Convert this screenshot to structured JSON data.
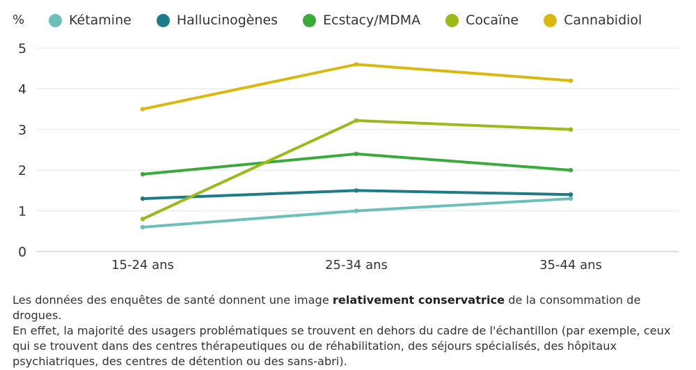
{
  "chart_data": {
    "type": "line",
    "unit_label": "%",
    "categories": [
      "15-24 ans",
      "25-34 ans",
      "35-44 ans"
    ],
    "ylim": [
      0,
      5
    ],
    "yticks": [
      0,
      1,
      2,
      3,
      4,
      5
    ],
    "grid": true,
    "legend_position": "top",
    "series": [
      {
        "name": "Kétamine",
        "color": "#6cc0b9",
        "values": [
          0.6,
          1.0,
          1.3
        ]
      },
      {
        "name": "Hallucinogènes",
        "color": "#1d7a87",
        "values": [
          1.3,
          1.5,
          1.4
        ]
      },
      {
        "name": "Ecstacy/MDMA",
        "color": "#3aaa3c",
        "values": [
          1.9,
          2.4,
          2.0
        ]
      },
      {
        "name": "Cocaïne",
        "color": "#9cb91a",
        "values": [
          0.8,
          3.22,
          3.0
        ]
      },
      {
        "name": "Cannabidiol",
        "color": "#dbb80f",
        "values": [
          3.5,
          4.6,
          4.2
        ]
      }
    ]
  },
  "note": {
    "line1_before": "Les données des enquêtes de santé donnent une image ",
    "line1_bold": "relativement conservatrice",
    "line1_after": " de la consommation de drogues.",
    "line2": "En effet, la majorité des usagers problématiques se trouvent en dehors du cadre de l'échantillon (par exemple, ceux qui se trouvent dans des centres thérapeutiques ou de réhabilitation, des séjours spécialisés, des hôpitaux psychiatriques, des centres de détention ou des sans-abri)."
  }
}
